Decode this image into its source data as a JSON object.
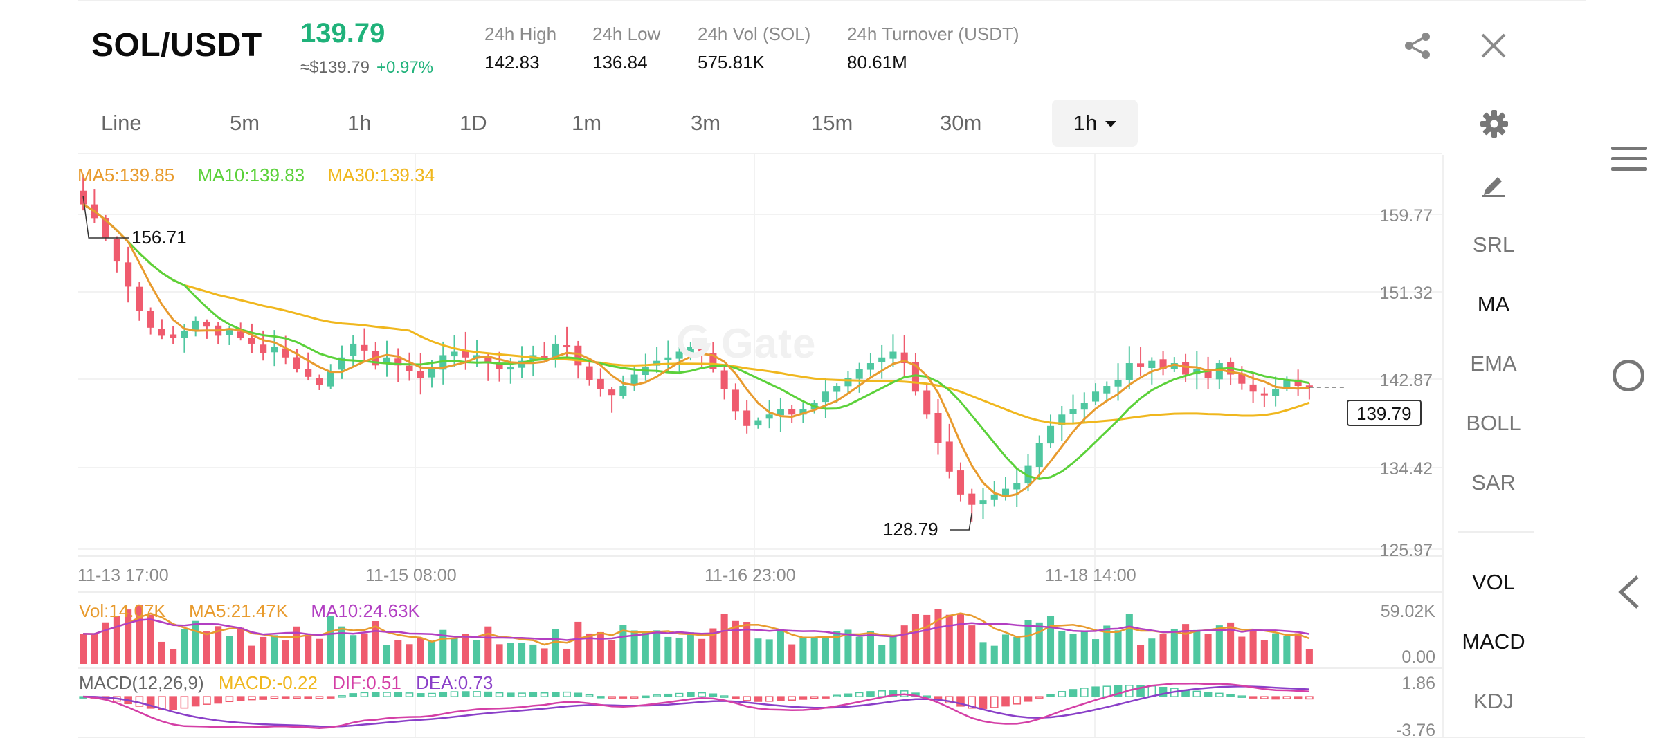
{
  "header": {
    "pair": "SOL/USDT",
    "last_price": "139.79",
    "approx_usd": "≈$139.79",
    "change_pct": "+0.97%",
    "stats": [
      {
        "label": "24h High",
        "value": "142.83"
      },
      {
        "label": "24h Low",
        "value": "136.84"
      },
      {
        "label": "24h Vol (SOL)",
        "value": "575.81K"
      },
      {
        "label": "24h Turnover (USDT)",
        "value": "80.61M"
      }
    ],
    "icons": {
      "share": "share-icon",
      "close": "close-icon"
    }
  },
  "tabs": [
    {
      "label": "Line"
    },
    {
      "label": "5m"
    },
    {
      "label": "1h"
    },
    {
      "label": "1D"
    },
    {
      "label": "1m"
    },
    {
      "label": "3m"
    },
    {
      "label": "15m"
    },
    {
      "label": "30m"
    },
    {
      "label": "1h",
      "active": true
    }
  ],
  "indicators": {
    "main": [
      "SRL",
      "MA",
      "EMA",
      "BOLL",
      "SAR"
    ],
    "main_active": "MA",
    "sub": [
      "VOL",
      "MACD",
      "KDJ"
    ],
    "sub_active": [
      "VOL",
      "MACD"
    ]
  },
  "main_legend": {
    "ma5": "MA5:139.85",
    "ma10": "MA10:139.83",
    "ma30": "MA30:139.34"
  },
  "vol_legend": {
    "vol": "Vol:14.07K",
    "ma5": "MA5:21.47K",
    "ma10": "MA10:24.63K"
  },
  "macd_legend": {
    "name": "MACD(12,26,9)",
    "macd": "MACD:-0.22",
    "dif": "DIF:0.51",
    "dea": "DEA:0.73"
  },
  "watermark": "Gate",
  "colors": {
    "up": "#4fc7a0",
    "down": "#ef5b6e",
    "ma5": "#e89b2e",
    "ma10": "#5bd13a",
    "ma30": "#f0b71e",
    "vol_ma10": "#b23fc2",
    "dif": "#d43fa6",
    "dea": "#8a3fc8",
    "accent_green": "#1fb27a"
  },
  "chart_data": {
    "type": "candlestick",
    "price_axis_ticks": [
      "159.77",
      "151.32",
      "142.87",
      "134.42",
      "125.97"
    ],
    "ylim": [
      125.97,
      159.77
    ],
    "time_labels": [
      "11-13 17:00",
      "11-15 08:00",
      "11-16 23:00",
      "11-18 14:00"
    ],
    "high_marker": "156.71",
    "low_marker": "128.79",
    "current_price": "139.79",
    "close_series": [
      155.8,
      154.6,
      152.9,
      150.8,
      148.6,
      146.5,
      145.0,
      144.3,
      144.1,
      144.7,
      145.6,
      145.1,
      144.3,
      144.8,
      144.1,
      143.6,
      142.8,
      143.3,
      142.4,
      141.4,
      140.7,
      140.0,
      141.2,
      142.4,
      143.6,
      143.0,
      141.7,
      142.4,
      141.7,
      141.2,
      140.6,
      141.4,
      142.6,
      142.9,
      142.4,
      142.6,
      141.9,
      141.4,
      141.6,
      142.1,
      142.6,
      142.4,
      143.6,
      143.3,
      141.7,
      140.4,
      139.6,
      139.1,
      139.9,
      140.9,
      141.6,
      142.1,
      142.4,
      142.9,
      143.3,
      142.9,
      141.4,
      139.6,
      137.7,
      136.4,
      136.9,
      137.4,
      137.9,
      137.4,
      137.9,
      138.4,
      139.4,
      139.9,
      140.6,
      141.4,
      141.9,
      142.4,
      142.9,
      141.9,
      139.4,
      137.4,
      134.9,
      132.4,
      130.4,
      129.5,
      129.9,
      130.4,
      130.9,
      131.4,
      132.9,
      134.9,
      136.4,
      137.4,
      137.9,
      138.4,
      139.4,
      139.9,
      140.4,
      141.9,
      141.6,
      142.1,
      141.4,
      141.9,
      140.9,
      141.4,
      140.6,
      141.9,
      140.9,
      140.1,
      139.4,
      139.1,
      139.6,
      140.4,
      139.9,
      139.79
    ],
    "volume_axis_ticks": [
      "59.02K",
      "0.00"
    ],
    "macd_axis_ticks": [
      "1.86",
      "-3.76"
    ]
  }
}
